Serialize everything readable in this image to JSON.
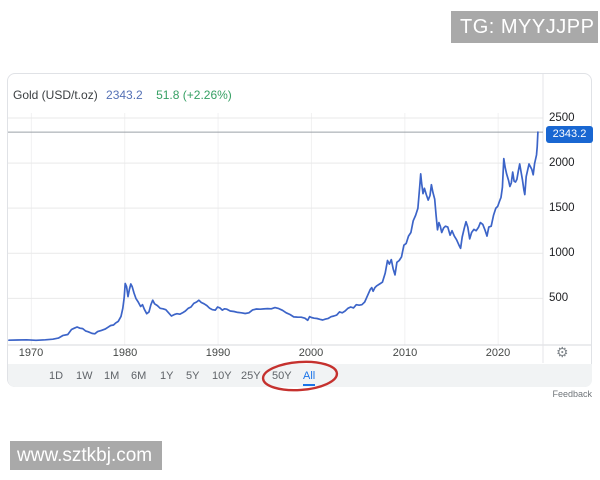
{
  "watermarks": {
    "top": "TG: MYYJJPP",
    "bottom": "www.sztkbj.com"
  },
  "header": {
    "instrument": "Gold (USD/t.oz)",
    "price": "2343.2",
    "change": "51.8 (+2.26%)"
  },
  "price_badge": "2343.2",
  "icons": {
    "gear": "⚙"
  },
  "footer": {
    "feedback": "Feedback"
  },
  "colors": {
    "line": "#3c64c8",
    "badge_bg": "#1967d2",
    "price_text": "#5571b5",
    "change_text": "#36a064",
    "active_range": "#1a73e8",
    "annotation_ellipse": "#c5312e",
    "current_price_line": "#9aa0a6",
    "gridline": "#e9e9e9"
  },
  "ranges": {
    "buttons": [
      "1D",
      "1W",
      "1M",
      "6M",
      "1Y",
      "5Y",
      "10Y",
      "25Y",
      "50Y",
      "All"
    ],
    "active": "All",
    "annotation": "hand-drawn red ellipse circling 50Y and All"
  },
  "chart_data": {
    "type": "line",
    "title": "Gold (USD/t.oz)",
    "current_value": 2343.2,
    "x_ticks": [
      "1970",
      "1980",
      "1990",
      "2000",
      "2010",
      "2020"
    ],
    "y_ticks": [
      "500",
      "1000",
      "1500",
      "2000",
      "2500"
    ],
    "x_range": [
      1967.5,
      2024.8
    ],
    "y_range": [
      0,
      2555
    ],
    "legend": "none",
    "grid": true,
    "series": [
      {
        "name": "Gold (USD/t.oz)",
        "x": [
          1967.6,
          1968.5,
          1969.5,
          1970.5,
          1971.5,
          1972.3,
          1972.9,
          1973.4,
          1973.9,
          1974.3,
          1974.6,
          1974.9,
          1975.2,
          1975.5,
          1975.8,
          1976.1,
          1976.5,
          1976.8,
          1977.1,
          1977.5,
          1977.9,
          1978.2,
          1978.5,
          1978.8,
          1979.0,
          1979.3,
          1979.6,
          1979.8,
          1979.95,
          1980.05,
          1980.2,
          1980.35,
          1980.5,
          1980.65,
          1980.8,
          1981.0,
          1981.2,
          1981.45,
          1981.7,
          1981.9,
          1982.1,
          1982.35,
          1982.6,
          1982.8,
          1983.0,
          1983.2,
          1983.5,
          1983.8,
          1984.1,
          1984.4,
          1984.7,
          1985.0,
          1985.3,
          1985.6,
          1985.9,
          1986.2,
          1986.5,
          1986.8,
          1987.1,
          1987.4,
          1987.7,
          1987.95,
          1988.2,
          1988.5,
          1988.8,
          1989.1,
          1989.4,
          1989.7,
          1989.95,
          1990.2,
          1990.45,
          1990.7,
          1990.95,
          1991.3,
          1991.7,
          1992.1,
          1992.5,
          1992.9,
          1993.3,
          1993.7,
          1994.1,
          1994.5,
          1994.9,
          1995.3,
          1995.7,
          1996.1,
          1996.5,
          1996.9,
          1997.3,
          1997.7,
          1998.1,
          1998.5,
          1998.9,
          1999.3,
          1999.6,
          1999.8,
          2000.0,
          2000.3,
          2000.6,
          2000.9,
          2001.2,
          2001.5,
          2001.8,
          2002.1,
          2002.4,
          2002.7,
          2003.0,
          2003.3,
          2003.6,
          2003.9,
          2004.2,
          2004.5,
          2004.8,
          2005.1,
          2005.4,
          2005.7,
          2006.0,
          2006.3,
          2006.45,
          2006.6,
          2006.8,
          2007.0,
          2007.3,
          2007.6,
          2007.9,
          2008.15,
          2008.35,
          2008.55,
          2008.75,
          2008.95,
          2009.15,
          2009.4,
          2009.65,
          2009.9,
          2010.15,
          2010.4,
          2010.65,
          2010.9,
          2011.15,
          2011.4,
          2011.6,
          2011.7,
          2011.8,
          2011.95,
          2012.1,
          2012.3,
          2012.5,
          2012.7,
          2012.85,
          2013.0,
          2013.2,
          2013.35,
          2013.5,
          2013.65,
          2013.8,
          2013.95,
          2014.15,
          2014.35,
          2014.6,
          2014.85,
          2015.05,
          2015.3,
          2015.55,
          2015.8,
          2015.97,
          2016.15,
          2016.35,
          2016.55,
          2016.75,
          2016.95,
          2017.15,
          2017.4,
          2017.65,
          2017.9,
          2018.1,
          2018.35,
          2018.6,
          2018.8,
          2019.0,
          2019.25,
          2019.5,
          2019.75,
          2019.95,
          2020.15,
          2020.3,
          2020.45,
          2020.6,
          2020.75,
          2020.9,
          2021.1,
          2021.25,
          2021.4,
          2021.55,
          2021.7,
          2021.85,
          2022.0,
          2022.15,
          2022.3,
          2022.45,
          2022.6,
          2022.75,
          2022.85,
          2023.0,
          2023.15,
          2023.3,
          2023.45,
          2023.6,
          2023.75,
          2023.9,
          2024.0,
          2024.1,
          2024.18,
          2024.25
        ],
        "values": [
          37,
          39,
          41,
          36,
          41,
          48,
          60,
          90,
          100,
          155,
          170,
          183,
          170,
          165,
          140,
          130,
          112,
          108,
          132,
          145,
          160,
          180,
          200,
          205,
          225,
          245,
          300,
          390,
          510,
          665,
          630,
          520,
          600,
          660,
          630,
          560,
          500,
          460,
          410,
          430,
          380,
          330,
          350,
          430,
          480,
          440,
          420,
          390,
          385,
          375,
          340,
          305,
          320,
          330,
          325,
          340,
          360,
          390,
          405,
          445,
          460,
          480,
          455,
          440,
          420,
          390,
          375,
          370,
          405,
          395,
          370,
          385,
          380,
          360,
          355,
          345,
          340,
          333,
          340,
          372,
          382,
          380,
          384,
          387,
          385,
          398,
          387,
          368,
          340,
          322,
          295,
          293,
          291,
          280,
          257,
          298,
          288,
          280,
          277,
          268,
          260,
          270,
          278,
          297,
          305,
          315,
          350,
          340,
          360,
          390,
          405,
          395,
          430,
          425,
          430,
          460,
          530,
          600,
          620,
          580,
          620,
          640,
          660,
          680,
          780,
          920,
          880,
          930,
          830,
          760,
          900,
          920,
          960,
          1090,
          1110,
          1190,
          1230,
          1360,
          1420,
          1500,
          1750,
          1880,
          1780,
          1660,
          1720,
          1650,
          1590,
          1640,
          1760,
          1680,
          1600,
          1420,
          1260,
          1340,
          1300,
          1230,
          1280,
          1300,
          1290,
          1200,
          1250,
          1190,
          1150,
          1090,
          1055,
          1180,
          1270,
          1350,
          1290,
          1160,
          1230,
          1265,
          1250,
          1290,
          1340,
          1320,
          1255,
          1190,
          1290,
          1300,
          1420,
          1500,
          1520,
          1580,
          1620,
          1730,
          2050,
          1950,
          1880,
          1810,
          1740,
          1780,
          1900,
          1800,
          1790,
          1820,
          1910,
          1990,
          1900,
          1810,
          1700,
          1650,
          1850,
          1920,
          1990,
          1960,
          1930,
          1870,
          1995,
          2040,
          2090,
          2180,
          2343
        ]
      }
    ]
  }
}
